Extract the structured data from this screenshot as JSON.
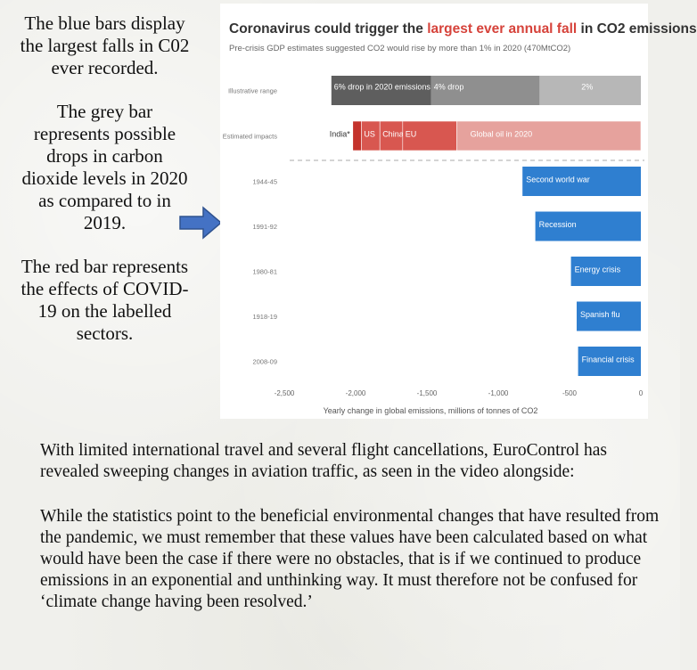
{
  "side_notes": [
    "The blue bars display the largest falls in C02 ever recorded.",
    "The grey bar represents possible drops in carbon dioxide levels in 2020 as compared to in 2019.",
    "The red bar represents the effects of COVID-19 on the labelled sectors."
  ],
  "paragraphs": [
    "With limited international travel and several flight cancellations, EuroControl has revealed sweeping changes in aviation traffic, as seen in the video alongside:",
    "While the statistics point to the beneficial environmental changes that have resulted from the pandemic, we must remember that these values have been calculated based on what would have been the case if there were no obstacles, that is if we continued to produce emissions in an exponential and unthinking way. It must therefore not be confused for ‘climate change having been resolved.’"
  ],
  "colors": {
    "blue": "#2f7fd0",
    "grey_dark": "#5e5e5e",
    "grey_mid": "#8f8f8f",
    "grey_light": "#b7b7b7",
    "red_dark": "#c4332c",
    "red_mid": "#d85750",
    "red_light": "#e6a29d",
    "title_accent": "#d6433b",
    "arrow": "#4472c4"
  },
  "chart_data": {
    "type": "bar",
    "orientation": "horizontal",
    "title_before": "Coronavirus could trigger the ",
    "title_accent": "largest ever annual fall",
    "title_after": " in CO2 emissions",
    "subtitle": "Pre-crisis GDP estimates suggested CO2 would rise by more than 1% in 2020 (470MtCO2)",
    "xlabel": "Yearly change in global emissions, millions of tonnes of CO2",
    "xlim": [
      -2500,
      0
    ],
    "xticks": [
      -2500,
      -2000,
      -1500,
      -1000,
      -500,
      0
    ],
    "xtick_labels": [
      "-2,500",
      "-2,000",
      "-1,500",
      "-1,000",
      "-500",
      "0"
    ],
    "illustrative": {
      "label": "Illustrative range",
      "segments": [
        {
          "start": -2170,
          "end": -1470,
          "label": "6% drop in 2020 emissions",
          "color": "grey_dark"
        },
        {
          "start": -1470,
          "end": -710,
          "label": "4% drop",
          "color": "grey_mid"
        },
        {
          "start": -710,
          "end": 0,
          "label": "2%",
          "color": "grey_light"
        }
      ]
    },
    "estimated": {
      "label": "Estimated impacts",
      "outside_label": "India*",
      "segments": [
        {
          "start": -2020,
          "end": -1960,
          "label": "",
          "color": "red_dark"
        },
        {
          "start": -1960,
          "end": -1830,
          "label": "US",
          "color": "red_mid"
        },
        {
          "start": -1830,
          "end": -1670,
          "label": "China",
          "color": "red_mid"
        },
        {
          "start": -1670,
          "end": -1290,
          "label": "EU",
          "color": "red_mid"
        },
        {
          "start": -1290,
          "end": 0,
          "label": "Global oil in 2020",
          "color": "red_light"
        }
      ]
    },
    "historical": [
      {
        "period": "1944-45",
        "value": -830,
        "label": "Second world war"
      },
      {
        "period": "1991-92",
        "value": -740,
        "label": "Recession"
      },
      {
        "period": "1980-81",
        "value": -490,
        "label": "Energy crisis"
      },
      {
        "period": "1918-19",
        "value": -450,
        "label": "Spanish flu"
      },
      {
        "period": "2008-09",
        "value": -440,
        "label": "Financial crisis"
      }
    ]
  }
}
